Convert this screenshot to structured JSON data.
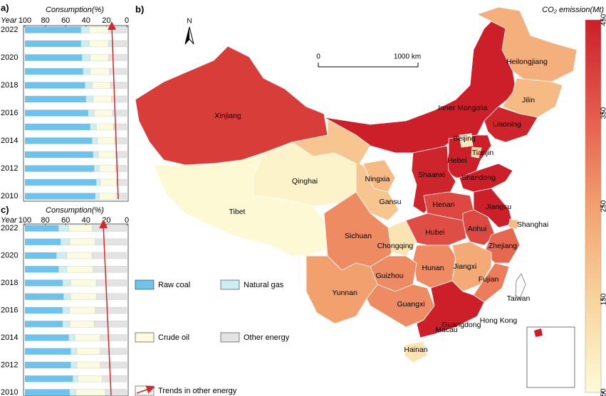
{
  "chart_data": [
    {
      "type": "bar",
      "orientation": "horizontal",
      "panel": "a)",
      "title": "Consumption(%)",
      "y_label": "Year",
      "categories": [
        "2022",
        null,
        "2020",
        null,
        "2018",
        null,
        "2016",
        null,
        "2014",
        null,
        "2012",
        null,
        "2010"
      ],
      "xlim": [
        100,
        0
      ],
      "xticks": [
        100,
        80,
        60,
        40,
        20,
        0
      ],
      "series": [
        {
          "name": "Raw coal",
          "color": "#6cc4ee",
          "values": [
            55,
            55,
            56,
            57,
            59,
            60,
            62,
            64,
            66,
            67,
            68,
            70,
            69
          ]
        },
        {
          "name": "Natural gas",
          "color": "#cdeef0",
          "values": [
            8,
            8,
            8,
            7,
            7,
            7,
            6,
            6,
            5,
            5,
            5,
            4,
            4
          ]
        },
        {
          "name": "Crude oil",
          "color": "#fbfbe0",
          "values": [
            19,
            19,
            18,
            19,
            18,
            18,
            18,
            17,
            17,
            17,
            16,
            16,
            17
          ]
        },
        {
          "name": "Other energy",
          "color": "#e3e3e3",
          "values": [
            18,
            18,
            18,
            17,
            16,
            15,
            14,
            13,
            12,
            11,
            11,
            10,
            10
          ]
        }
      ]
    },
    {
      "type": "bar",
      "orientation": "horizontal",
      "panel": "c)",
      "title": "Consumption(%)",
      "y_label": "Year",
      "categories": [
        "2022",
        null,
        "2020",
        null,
        "2018",
        null,
        "2016",
        null,
        "2014",
        null,
        "2012",
        null,
        "2010"
      ],
      "xlim": [
        100,
        0
      ],
      "xticks": [
        100,
        80,
        60,
        40,
        20,
        0
      ],
      "series": [
        {
          "color": "#6cc4ee",
          "values": [
            33,
            35,
            31,
            33,
            37,
            38,
            37,
            37,
            43,
            45,
            45,
            47,
            44
          ]
        },
        {
          "color": "#cdeef0",
          "values": [
            10,
            9,
            10,
            8,
            8,
            7,
            7,
            7,
            6,
            6,
            6,
            5,
            6
          ]
        },
        {
          "color": "#fbfbe0",
          "values": [
            23,
            25,
            25,
            26,
            25,
            25,
            25,
            24,
            25,
            23,
            23,
            24,
            29
          ]
        },
        {
          "color": "#e3e3e3",
          "values": [
            34,
            31,
            34,
            33,
            30,
            30,
            31,
            32,
            26,
            26,
            26,
            24,
            21
          ]
        }
      ]
    }
  ],
  "legend_trend": "Trends in other energy",
  "map": {
    "panel": "b)",
    "north": "N",
    "scale_start": "0",
    "scale_end": "1000 km",
    "colorbar": {
      "title": "CO₂ emission(Mt)",
      "lim": [
        50,
        450
      ],
      "ticks": [
        450,
        350,
        250,
        150,
        50
      ],
      "colors": [
        "#cc1f2a",
        "#e45a4a",
        "#f2a06e",
        "#f9d39b",
        "#fdfbd7"
      ]
    },
    "provinces": [
      {
        "name": "Xinjiang",
        "value": 400
      },
      {
        "name": "Tibet",
        "value": 55
      },
      {
        "name": "Qinghai",
        "value": 70
      },
      {
        "name": "Gansu",
        "value": 175
      },
      {
        "name": "Inner Mongolia",
        "value": 450
      },
      {
        "name": "Heilongjiang",
        "value": 220
      },
      {
        "name": "Jilin",
        "value": 200
      },
      {
        "name": "Liaoning",
        "value": 440
      },
      {
        "name": "Hebei",
        "value": 450
      },
      {
        "name": "Beijing",
        "value": 100
      },
      {
        "name": "Tianjin",
        "value": 150
      },
      {
        "name": "Shaanxi",
        "value": 440
      },
      {
        "name": "Shandong",
        "value": 450
      },
      {
        "name": "Ningxia",
        "value": 200
      },
      {
        "name": "Henan",
        "value": 380
      },
      {
        "name": "Jiangsu",
        "value": 450
      },
      {
        "name": "Anhui",
        "value": 380
      },
      {
        "name": "Shanghai",
        "value": 200
      },
      {
        "name": "Hubei",
        "value": 370
      },
      {
        "name": "Chongqing",
        "value": 110
      },
      {
        "name": "Sichuan",
        "value": 280
      },
      {
        "name": "Zhejiang",
        "value": 330
      },
      {
        "name": "Hunan",
        "value": 280
      },
      {
        "name": "Jiangxi",
        "value": 230
      },
      {
        "name": "Fujian",
        "value": 300
      },
      {
        "name": "Guizhou",
        "value": 280
      },
      {
        "name": "Yunnan",
        "value": 250
      },
      {
        "name": "Guangxi",
        "value": 280
      },
      {
        "name": "Guangdong",
        "value": 450
      },
      {
        "name": "Hainan",
        "value": 110
      }
    ],
    "places": [
      "Taiwan",
      "Hong Kong",
      "Macau"
    ]
  }
}
